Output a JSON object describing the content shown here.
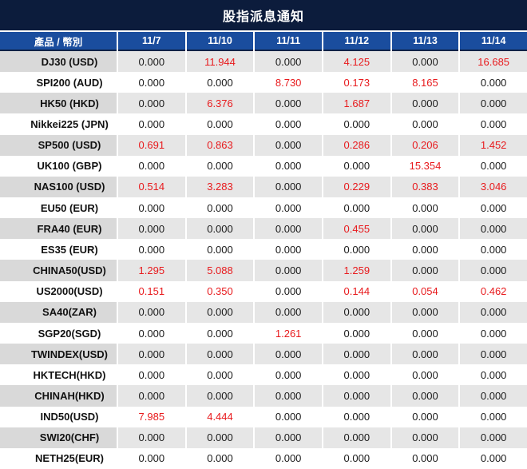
{
  "colors": {
    "title_bg": "#0c1c3c",
    "header_bg": "#1a4d9e",
    "header_text": "#ffffff",
    "alt_row_bg": "#e6e6e6",
    "alt_label_bg": "#d9d9d9",
    "zero_value_text": "#1a1a1a",
    "nonzero_value_text": "#e81a1d"
  },
  "chart_data": {
    "type": "table",
    "title": "股指派息通知",
    "columns": [
      "產品 / 幣別",
      "11/7",
      "11/10",
      "11/11",
      "11/12",
      "11/13",
      "11/14"
    ],
    "rows": [
      {
        "label": "DJ30 (USD)",
        "values": [
          "0.000",
          "11.944",
          "0.000",
          "4.125",
          "0.000",
          "16.685"
        ]
      },
      {
        "label": "SPI200 (AUD)",
        "values": [
          "0.000",
          "0.000",
          "8.730",
          "0.173",
          "8.165",
          "0.000"
        ]
      },
      {
        "label": "HK50 (HKD)",
        "values": [
          "0.000",
          "6.376",
          "0.000",
          "1.687",
          "0.000",
          "0.000"
        ]
      },
      {
        "label": "Nikkei225 (JPN)",
        "values": [
          "0.000",
          "0.000",
          "0.000",
          "0.000",
          "0.000",
          "0.000"
        ]
      },
      {
        "label": "SP500 (USD)",
        "values": [
          "0.691",
          "0.863",
          "0.000",
          "0.286",
          "0.206",
          "1.452"
        ]
      },
      {
        "label": "UK100 (GBP)",
        "values": [
          "0.000",
          "0.000",
          "0.000",
          "0.000",
          "15.354",
          "0.000"
        ]
      },
      {
        "label": "NAS100 (USD)",
        "values": [
          "0.514",
          "3.283",
          "0.000",
          "0.229",
          "0.383",
          "3.046"
        ]
      },
      {
        "label": "EU50 (EUR)",
        "values": [
          "0.000",
          "0.000",
          "0.000",
          "0.000",
          "0.000",
          "0.000"
        ]
      },
      {
        "label": "FRA40 (EUR)",
        "values": [
          "0.000",
          "0.000",
          "0.000",
          "0.455",
          "0.000",
          "0.000"
        ]
      },
      {
        "label": "ES35 (EUR)",
        "values": [
          "0.000",
          "0.000",
          "0.000",
          "0.000",
          "0.000",
          "0.000"
        ]
      },
      {
        "label": "CHINA50(USD)",
        "values": [
          "1.295",
          "5.088",
          "0.000",
          "1.259",
          "0.000",
          "0.000"
        ]
      },
      {
        "label": "US2000(USD)",
        "values": [
          "0.151",
          "0.350",
          "0.000",
          "0.144",
          "0.054",
          "0.462"
        ]
      },
      {
        "label": "SA40(ZAR)",
        "values": [
          "0.000",
          "0.000",
          "0.000",
          "0.000",
          "0.000",
          "0.000"
        ]
      },
      {
        "label": "SGP20(SGD)",
        "values": [
          "0.000",
          "0.000",
          "1.261",
          "0.000",
          "0.000",
          "0.000"
        ]
      },
      {
        "label": "TWINDEX(USD)",
        "values": [
          "0.000",
          "0.000",
          "0.000",
          "0.000",
          "0.000",
          "0.000"
        ]
      },
      {
        "label": "HKTECH(HKD)",
        "values": [
          "0.000",
          "0.000",
          "0.000",
          "0.000",
          "0.000",
          "0.000"
        ]
      },
      {
        "label": "CHINAH(HKD)",
        "values": [
          "0.000",
          "0.000",
          "0.000",
          "0.000",
          "0.000",
          "0.000"
        ]
      },
      {
        "label": "IND50(USD)",
        "values": [
          "7.985",
          "4.444",
          "0.000",
          "0.000",
          "0.000",
          "0.000"
        ]
      },
      {
        "label": "SWI20(CHF)",
        "values": [
          "0.000",
          "0.000",
          "0.000",
          "0.000",
          "0.000",
          "0.000"
        ]
      },
      {
        "label": "NETH25(EUR)",
        "values": [
          "0.000",
          "0.000",
          "0.000",
          "0.000",
          "0.000",
          "0.000"
        ]
      }
    ]
  }
}
